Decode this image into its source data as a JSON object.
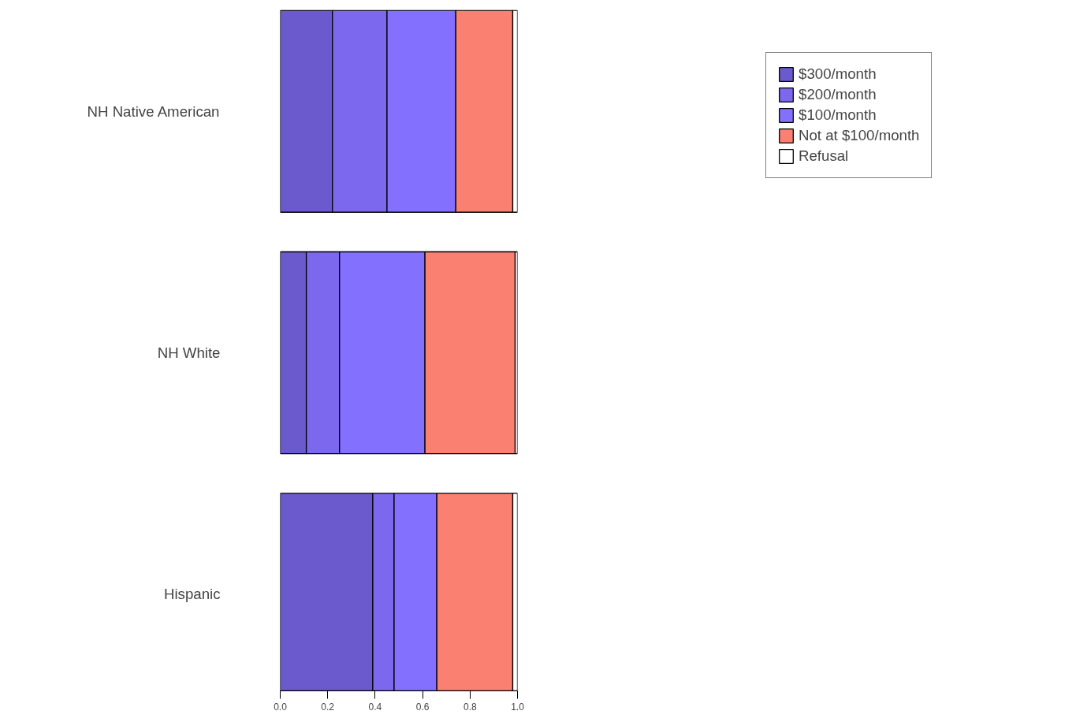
{
  "chart_data": {
    "type": "bar",
    "orientation": "horizontal",
    "stacked": true,
    "categories": [
      "NH Native American",
      "NH White",
      "Hispanic"
    ],
    "series": [
      {
        "name": "$300/month",
        "color": "#6a5acd",
        "values": [
          0.22,
          0.11,
          0.39
        ]
      },
      {
        "name": "$200/month",
        "color": "#7b68ee",
        "values": [
          0.23,
          0.14,
          0.09
        ]
      },
      {
        "name": "$100/month",
        "color": "#8470ff",
        "values": [
          0.29,
          0.36,
          0.18
        ]
      },
      {
        "name": "Not at $100/month",
        "color": "#fa8072",
        "values": [
          0.24,
          0.38,
          0.32
        ]
      },
      {
        "name": "Refusal",
        "color": "#ffffff",
        "values": [
          0.02,
          0.01,
          0.02
        ]
      }
    ],
    "xlim": [
      0,
      1
    ],
    "xticks": [
      {
        "value": 0,
        "label": "0.0"
      },
      {
        "value": 0.2,
        "label": "0.2"
      },
      {
        "value": 0.4,
        "label": "0.4"
      },
      {
        "value": 0.6,
        "label": "0.6"
      },
      {
        "value": 0.8,
        "label": "0.8"
      },
      {
        "value": 1,
        "label": "1.0"
      }
    ],
    "legend": "top right"
  }
}
